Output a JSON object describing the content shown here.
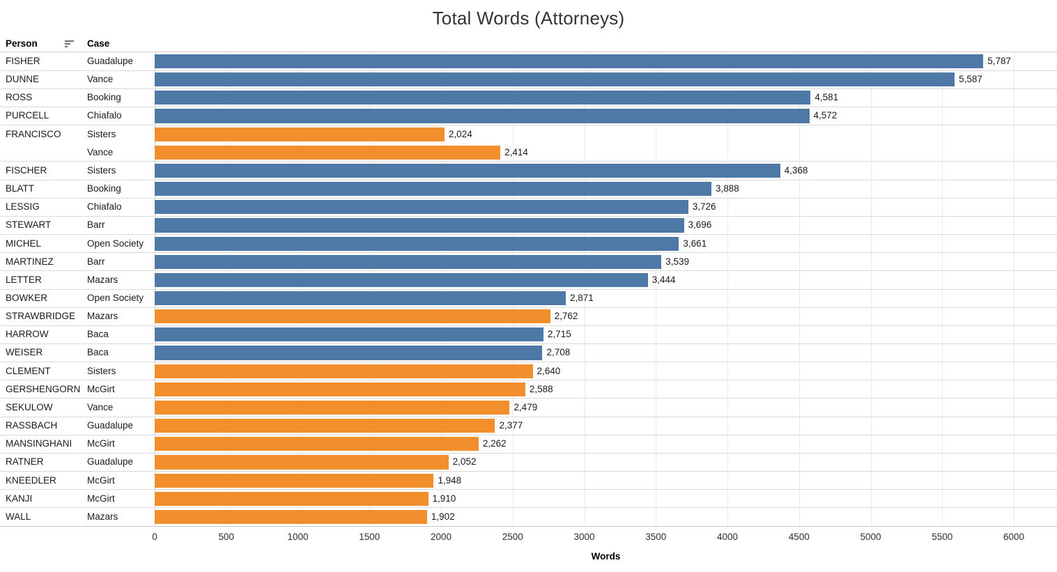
{
  "title": "Total Words (Attorneys)",
  "columns": {
    "person": "Person",
    "case": "Case"
  },
  "sort_icon": "sort-descending-icon",
  "colors": {
    "blue": "#4e79a7",
    "orange": "#f28e2b"
  },
  "axis": {
    "label": "Words",
    "min": 0,
    "max": 6000,
    "ticks": [
      0,
      500,
      1000,
      1500,
      2000,
      2500,
      3000,
      3500,
      4000,
      4500,
      5000,
      5500,
      6000
    ]
  },
  "chart_data": {
    "type": "bar",
    "orientation": "horizontal",
    "title": "Total Words (Attorneys)",
    "xlabel": "Words",
    "xlim": [
      0,
      6000
    ],
    "grid": true,
    "rows": [
      {
        "person": "FISHER",
        "case": "Guadalupe",
        "value": 5787,
        "label": "5,787",
        "color": "blue"
      },
      {
        "person": "DUNNE",
        "case": "Vance",
        "value": 5587,
        "label": "5,587",
        "color": "blue"
      },
      {
        "person": "ROSS",
        "case": "Booking",
        "value": 4581,
        "label": "4,581",
        "color": "blue"
      },
      {
        "person": "PURCELL",
        "case": "Chiafalo",
        "value": 4572,
        "label": "4,572",
        "color": "blue"
      },
      {
        "person": "FRANCISCO",
        "case": "Sisters",
        "value": 2024,
        "label": "2,024",
        "color": "orange"
      },
      {
        "person": "",
        "case": "Vance",
        "value": 2414,
        "label": "2,414",
        "color": "orange"
      },
      {
        "person": "FISCHER",
        "case": "Sisters",
        "value": 4368,
        "label": "4,368",
        "color": "blue"
      },
      {
        "person": "BLATT",
        "case": "Booking",
        "value": 3888,
        "label": "3,888",
        "color": "blue"
      },
      {
        "person": "LESSIG",
        "case": "Chiafalo",
        "value": 3726,
        "label": "3,726",
        "color": "blue"
      },
      {
        "person": "STEWART",
        "case": "Barr",
        "value": 3696,
        "label": "3,696",
        "color": "blue"
      },
      {
        "person": "MICHEL",
        "case": "Open Society",
        "value": 3661,
        "label": "3,661",
        "color": "blue"
      },
      {
        "person": "MARTINEZ",
        "case": "Barr",
        "value": 3539,
        "label": "3,539",
        "color": "blue"
      },
      {
        "person": "LETTER",
        "case": "Mazars",
        "value": 3444,
        "label": "3,444",
        "color": "blue"
      },
      {
        "person": "BOWKER",
        "case": "Open Society",
        "value": 2871,
        "label": "2,871",
        "color": "blue"
      },
      {
        "person": "STRAWBRIDGE",
        "case": "Mazars",
        "value": 2762,
        "label": "2,762",
        "color": "orange"
      },
      {
        "person": "HARROW",
        "case": "Baca",
        "value": 2715,
        "label": "2,715",
        "color": "blue"
      },
      {
        "person": "WEISER",
        "case": "Baca",
        "value": 2708,
        "label": "2,708",
        "color": "blue"
      },
      {
        "person": "CLEMENT",
        "case": "Sisters",
        "value": 2640,
        "label": "2,640",
        "color": "orange"
      },
      {
        "person": "GERSHENGORN",
        "case": "McGirt",
        "value": 2588,
        "label": "2,588",
        "color": "orange"
      },
      {
        "person": "SEKULOW",
        "case": "Vance",
        "value": 2479,
        "label": "2,479",
        "color": "orange"
      },
      {
        "person": "RASSBACH",
        "case": "Guadalupe",
        "value": 2377,
        "label": "2,377",
        "color": "orange"
      },
      {
        "person": "MANSINGHANI",
        "case": "McGirt",
        "value": 2262,
        "label": "2,262",
        "color": "orange"
      },
      {
        "person": "RATNER",
        "case": "Guadalupe",
        "value": 2052,
        "label": "2,052",
        "color": "orange"
      },
      {
        "person": "KNEEDLER",
        "case": "McGirt",
        "value": 1948,
        "label": "1,948",
        "color": "orange"
      },
      {
        "person": "KANJI",
        "case": "McGirt",
        "value": 1910,
        "label": "1,910",
        "color": "orange"
      },
      {
        "person": "WALL",
        "case": "Mazars",
        "value": 1902,
        "label": "1,902",
        "color": "orange"
      }
    ]
  }
}
